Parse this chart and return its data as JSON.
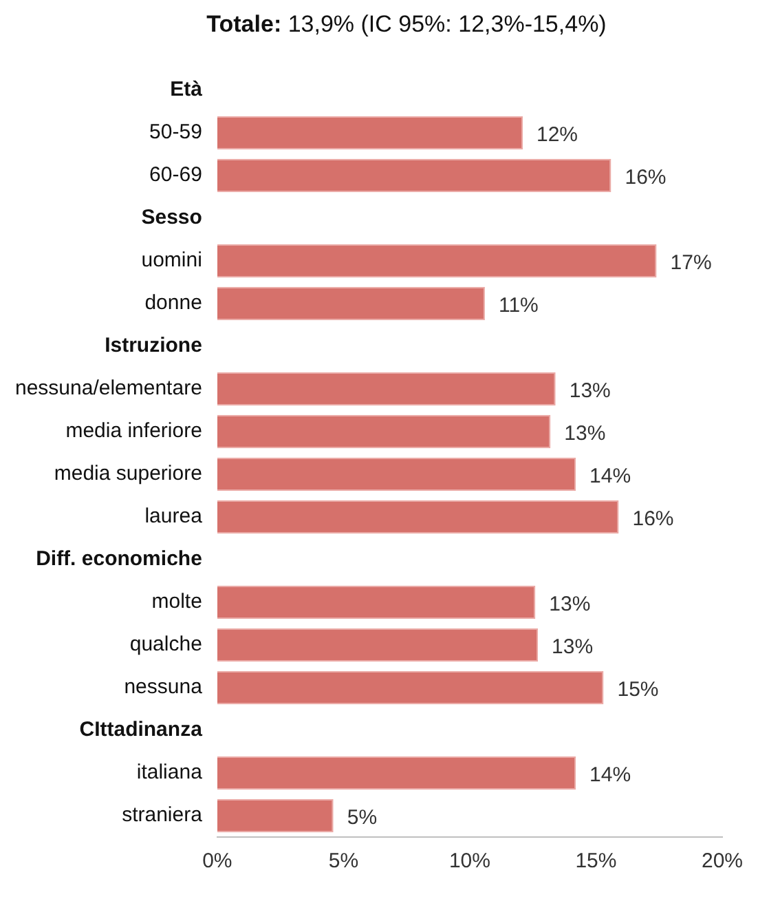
{
  "chart_data": {
    "type": "bar",
    "orientation": "horizontal",
    "title": "Totale: 13,9% (IC 95%: 12,3%-15,4%)",
    "categories": [
      "Età",
      "50-59",
      "60-69",
      "Sesso",
      "uomini",
      "donne",
      "Istruzione",
      "nessuna/elementare",
      "media inferiore",
      "media superiore",
      "laurea",
      "Diff. economiche",
      "molte",
      "qualche",
      "nessuna",
      "CIttadinanza",
      "italiana",
      "straniera"
    ],
    "values": [
      null,
      12.1,
      15.6,
      null,
      17.4,
      10.6,
      null,
      13.4,
      13.2,
      14.2,
      15.9,
      null,
      12.6,
      12.7,
      15.3,
      null,
      14.2,
      4.6
    ],
    "value_labels": [
      null,
      "12%",
      "16%",
      null,
      "17%",
      "11%",
      null,
      "13%",
      "13%",
      "14%",
      "16%",
      null,
      "13%",
      "13%",
      "15%",
      null,
      "14%",
      "5%"
    ],
    "color": "#d6716b",
    "xlim": [
      0,
      20
    ],
    "xticks": [
      {
        "value": 0,
        "label": "0%"
      },
      {
        "value": 5,
        "label": "5%"
      },
      {
        "value": 10,
        "label": "10%"
      },
      {
        "value": 15,
        "label": "15%"
      },
      {
        "value": 20,
        "label": "20%"
      }
    ],
    "grid": false,
    "legend": false
  }
}
